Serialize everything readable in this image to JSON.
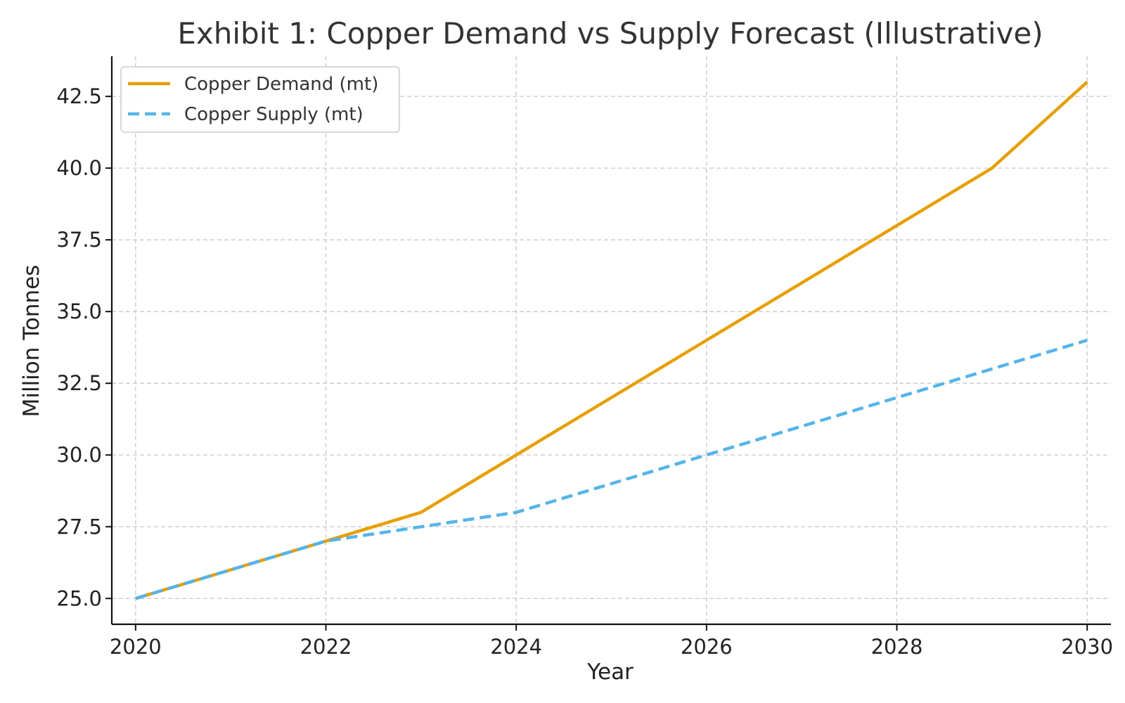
{
  "chart_data": {
    "type": "line",
    "title": "Exhibit 1: Copper Demand vs Supply Forecast (Illustrative)",
    "xlabel": "Year",
    "ylabel": "Million Tonnes",
    "x": [
      2020,
      2021,
      2022,
      2023,
      2024,
      2025,
      2026,
      2027,
      2028,
      2029,
      2030
    ],
    "x_ticks": [
      "2020",
      "2022",
      "2024",
      "2026",
      "2028",
      "2030"
    ],
    "y_ticks": [
      "25.0",
      "27.5",
      "30.0",
      "32.5",
      "35.0",
      "37.5",
      "40.0",
      "42.5"
    ],
    "xlim": [
      2019.75,
      2030.25
    ],
    "ylim": [
      24.1,
      43.9
    ],
    "grid": true,
    "legend_position": "top-left",
    "series": [
      {
        "name": "Copper Demand (mt)",
        "color": "#E69F00",
        "style": "solid",
        "values": [
          25,
          26,
          27,
          28,
          30,
          32,
          34,
          36,
          38,
          40,
          43
        ]
      },
      {
        "name": "Copper Supply (mt)",
        "color": "#56B4E9",
        "style": "dashed",
        "values": [
          25,
          26,
          27,
          27.5,
          28,
          29,
          30,
          31,
          32,
          33,
          34
        ]
      }
    ]
  }
}
